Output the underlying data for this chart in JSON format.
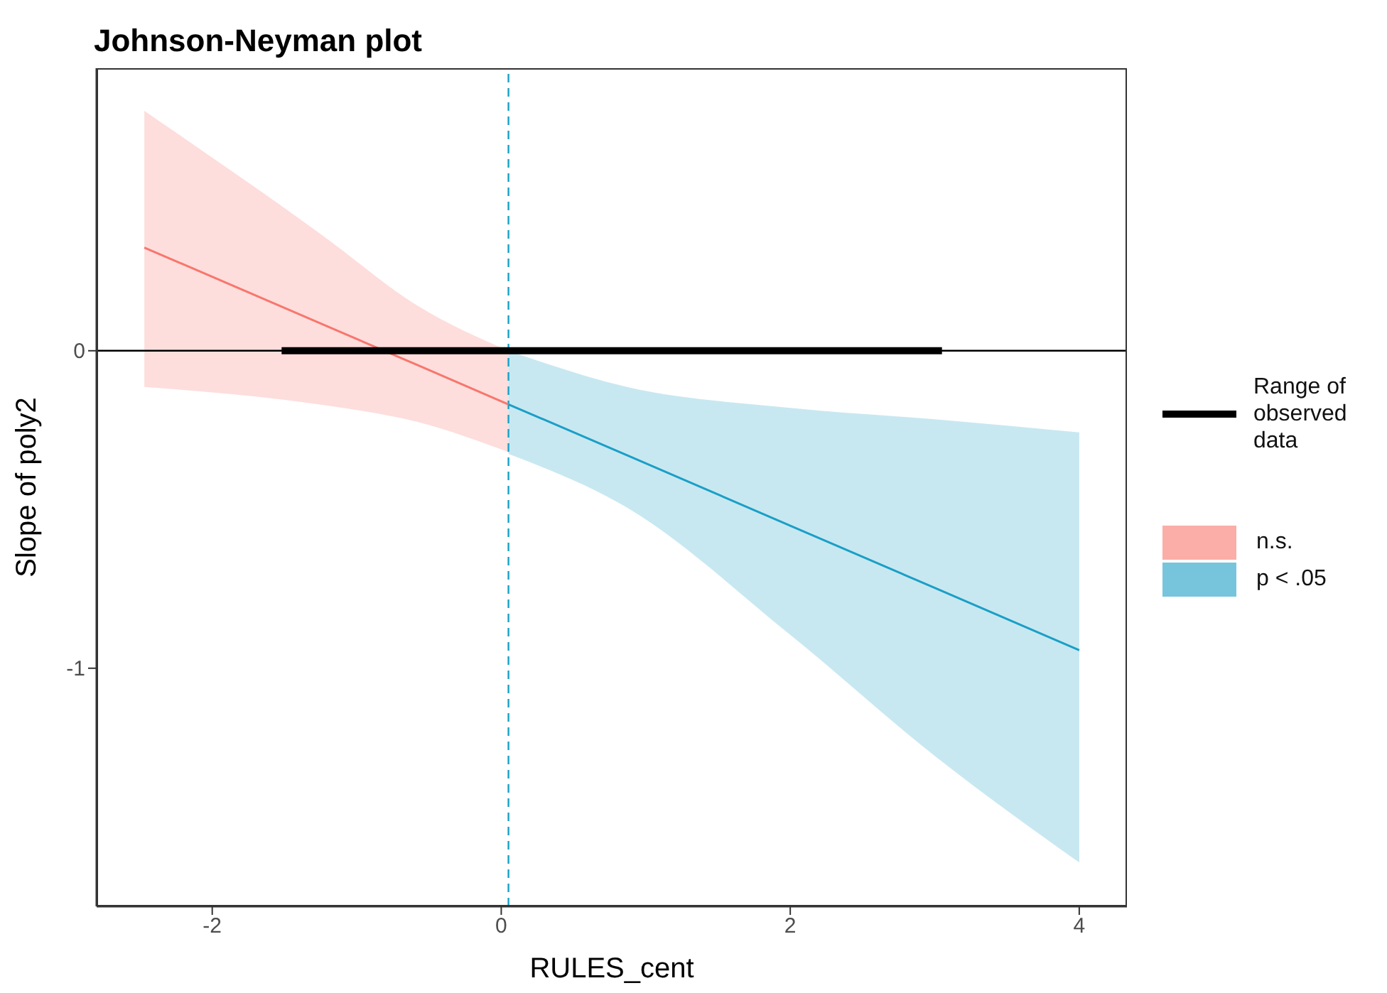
{
  "chart_data": {
    "type": "line",
    "title": "Johnson-Neyman plot",
    "xlabel": "RULES_cent",
    "ylabel": "Slope of poly2",
    "xlim": [
      -2.8,
      4.33
    ],
    "xticks": [
      -2,
      0,
      2,
      4
    ],
    "ylim": [
      -1.75,
      0.89
    ],
    "yticks": [
      -1,
      0
    ],
    "grid": false,
    "legend": "right",
    "series": [
      {
        "name": "n.s.",
        "type": "line",
        "color": "#f8766d",
        "x": [
          -2.47,
          -1.23,
          -0.58,
          0.05
        ],
        "values": [
          0.325,
          0.082,
          -0.045,
          -0.169
        ],
        "lower": [
          -0.114,
          -0.171,
          -0.224,
          -0.319
        ],
        "upper": [
          0.756,
          0.361,
          0.142,
          0
        ]
      },
      {
        "name": "p < .05",
        "type": "line",
        "color": "#1a9fc6",
        "x": [
          0.05,
          0.87,
          2,
          3,
          4
        ],
        "values": [
          -0.169,
          -0.329,
          -0.551,
          -0.747,
          -0.943
        ],
        "lower": [
          -0.325,
          -0.494,
          -0.895,
          -1.276,
          -1.612
        ],
        "upper": [
          0,
          -0.114,
          -0.18,
          -0.216,
          -0.257
        ]
      },
      {
        "name": "Range of observed data",
        "type": "line",
        "color": "#000000",
        "x": [
          -1.52,
          3.05
        ],
        "values": [
          0,
          0
        ]
      }
    ],
    "ref_lines": [
      {
        "axis": "y",
        "value": 0,
        "color": "#000000"
      },
      {
        "axis": "x",
        "value": 0.05,
        "color": "#1a9fc6",
        "line_style": "dashed"
      }
    ]
  }
}
